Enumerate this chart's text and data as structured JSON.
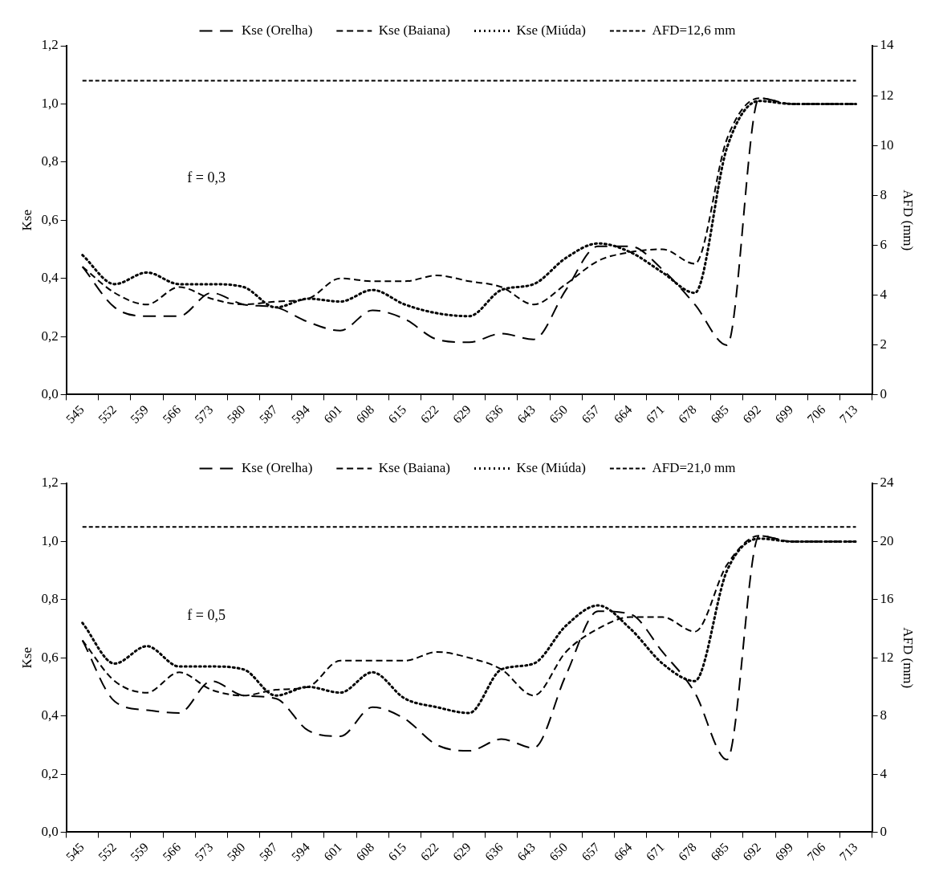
{
  "chart_data": [
    {
      "type": "line",
      "ylabel": "Kse",
      "y2label": "AFD (mm)",
      "annotations": [
        "f = 0,3"
      ],
      "categories": [
        "545",
        "552",
        "559",
        "566",
        "573",
        "580",
        "587",
        "594",
        "601",
        "608",
        "615",
        "622",
        "629",
        "636",
        "643",
        "650",
        "657",
        "664",
        "671",
        "678",
        "685",
        "692",
        "699",
        "706",
        "713"
      ],
      "series": [
        {
          "name": "Kse (Orelha)",
          "color": "#000000",
          "line_style": "dashed",
          "values": [
            0.44,
            0.3,
            0.27,
            0.27,
            0.35,
            0.31,
            0.3,
            0.25,
            0.22,
            0.29,
            0.26,
            0.19,
            0.18,
            0.21,
            0.19,
            0.36,
            0.51,
            0.51,
            0.43,
            0.31,
            0.17,
            1.02,
            1.0,
            1.0,
            1.0
          ]
        },
        {
          "name": "Kse (Baiana)",
          "color": "#000000",
          "line_style": "dashed",
          "values": [
            0.44,
            0.35,
            0.31,
            0.37,
            0.33,
            0.31,
            0.32,
            0.33,
            0.4,
            0.39,
            0.39,
            0.41,
            0.39,
            0.37,
            0.31,
            0.38,
            0.46,
            0.49,
            0.5,
            0.45,
            0.88,
            1.02,
            1.0,
            1.0,
            1.0
          ]
        },
        {
          "name": "Kse (Miúda)",
          "color": "#000000",
          "line_style": "dotted",
          "values": [
            0.48,
            0.38,
            0.42,
            0.38,
            0.38,
            0.37,
            0.3,
            0.33,
            0.32,
            0.36,
            0.31,
            0.28,
            0.27,
            0.36,
            0.38,
            0.47,
            0.52,
            0.49,
            0.42,
            0.35,
            0.85,
            1.01,
            1.0,
            1.0,
            1.0
          ]
        },
        {
          "name": "AFD=12,6 mm",
          "color": "#000000",
          "line_style": "dashed",
          "axis": "y2",
          "values": [
            12.6,
            12.6,
            12.6,
            12.6,
            12.6,
            12.6,
            12.6,
            12.6,
            12.6,
            12.6,
            12.6,
            12.6,
            12.6,
            12.6,
            12.6,
            12.6,
            12.6,
            12.6,
            12.6,
            12.6,
            12.6,
            12.6,
            12.6,
            12.6,
            12.6
          ]
        }
      ],
      "ylim": [
        0,
        1.2
      ],
      "yticks": [
        {
          "value": 0,
          "label": "0,0"
        },
        {
          "value": 0.2,
          "label": "0,2"
        },
        {
          "value": 0.4,
          "label": "0,4"
        },
        {
          "value": 0.6,
          "label": "0,6"
        },
        {
          "value": 0.8,
          "label": "0,8"
        },
        {
          "value": 1,
          "label": "1,0"
        },
        {
          "value": 1.2,
          "label": "1,2"
        }
      ],
      "y2lim": [
        0,
        14
      ],
      "y2ticks": [
        0,
        2,
        4,
        6,
        8,
        10,
        12,
        14
      ],
      "grid": false,
      "legend": "top",
      "marker": "none"
    },
    {
      "type": "line",
      "ylabel": "Kse",
      "y2label": "AFD (mm)",
      "annotations": [
        "f = 0,5"
      ],
      "categories": [
        "545",
        "552",
        "559",
        "566",
        "573",
        "580",
        "587",
        "594",
        "601",
        "608",
        "615",
        "622",
        "629",
        "636",
        "643",
        "650",
        "657",
        "664",
        "671",
        "678",
        "685",
        "692",
        "699",
        "706",
        "713"
      ],
      "series": [
        {
          "name": "Kse (Orelha)",
          "color": "#000000",
          "line_style": "dashed",
          "values": [
            0.66,
            0.45,
            0.42,
            0.41,
            0.52,
            0.47,
            0.46,
            0.35,
            0.33,
            0.43,
            0.39,
            0.3,
            0.28,
            0.32,
            0.29,
            0.54,
            0.76,
            0.75,
            0.62,
            0.48,
            0.25,
            1.02,
            1.0,
            1.0,
            1.0
          ]
        },
        {
          "name": "Kse (Baiana)",
          "color": "#000000",
          "line_style": "dashed",
          "values": [
            0.66,
            0.52,
            0.48,
            0.55,
            0.49,
            0.47,
            0.49,
            0.5,
            0.59,
            0.59,
            0.59,
            0.62,
            0.6,
            0.56,
            0.47,
            0.62,
            0.7,
            0.74,
            0.74,
            0.69,
            0.92,
            1.02,
            1.0,
            1.0,
            1.0
          ]
        },
        {
          "name": "Kse (Miúda)",
          "color": "#000000",
          "line_style": "dotted",
          "values": [
            0.72,
            0.58,
            0.64,
            0.57,
            0.57,
            0.56,
            0.47,
            0.5,
            0.48,
            0.55,
            0.46,
            0.43,
            0.41,
            0.56,
            0.58,
            0.71,
            0.78,
            0.7,
            0.58,
            0.52,
            0.9,
            1.01,
            1.0,
            1.0,
            1.0
          ]
        },
        {
          "name": "AFD=21,0 mm",
          "color": "#000000",
          "line_style": "dashed",
          "axis": "y2",
          "values": [
            21.0,
            21.0,
            21.0,
            21.0,
            21.0,
            21.0,
            21.0,
            21.0,
            21.0,
            21.0,
            21.0,
            21.0,
            21.0,
            21.0,
            21.0,
            21.0,
            21.0,
            21.0,
            21.0,
            21.0,
            21.0,
            21.0,
            21.0,
            21.0,
            21.0
          ]
        }
      ],
      "ylim": [
        0,
        1.2
      ],
      "yticks": [
        {
          "value": 0,
          "label": "0,0"
        },
        {
          "value": 0.2,
          "label": "0,2"
        },
        {
          "value": 0.4,
          "label": "0,4"
        },
        {
          "value": 0.6,
          "label": "0,6"
        },
        {
          "value": 0.8,
          "label": "0,8"
        },
        {
          "value": 1,
          "label": "1,0"
        },
        {
          "value": 1.2,
          "label": "1,2"
        }
      ],
      "y2lim": [
        0,
        24
      ],
      "y2ticks": [
        0,
        4,
        8,
        12,
        16,
        20,
        24
      ],
      "grid": false,
      "legend": "top",
      "marker": "none"
    }
  ]
}
